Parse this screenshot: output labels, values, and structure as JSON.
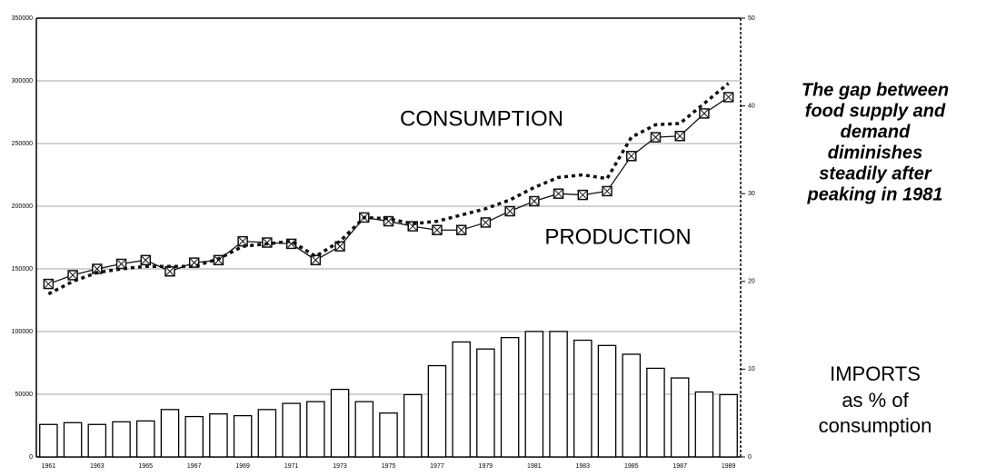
{
  "chart_data": {
    "type": "combo",
    "categories": [
      "1961",
      null,
      "1963",
      null,
      "1965",
      null,
      "1967",
      null,
      "1969",
      null,
      "1971",
      null,
      "1973",
      null,
      "1975",
      null,
      "1977",
      null,
      "1979",
      null,
      "1981",
      null,
      "1983",
      null,
      "1985",
      null,
      "1987",
      null,
      "1989"
    ],
    "ylim": [
      0,
      350000
    ],
    "yticks": [
      0,
      50000,
      100000,
      150000,
      200000,
      250000,
      300000,
      350000
    ],
    "y2lim": [
      0,
      50
    ],
    "y2ticks": [
      0,
      10,
      20,
      30,
      40,
      50
    ],
    "grid": true,
    "series": [
      {
        "name": "PRODUCTION",
        "type": "line",
        "style": "solid-markers",
        "color": "#111111",
        "values": [
          138000,
          145000,
          150000,
          154000,
          157000,
          148000,
          155000,
          157000,
          172000,
          171000,
          170000,
          157000,
          168000,
          191000,
          188000,
          184000,
          181000,
          181000,
          187000,
          196000,
          204000,
          210000,
          209000,
          212000,
          240000,
          255000,
          256000,
          274000,
          287000
        ]
      },
      {
        "name": "CONSUMPTION",
        "type": "line",
        "style": "dotted",
        "color": "#111111",
        "values": [
          130000,
          140000,
          147000,
          150000,
          152000,
          152000,
          152000,
          158000,
          168000,
          170000,
          172000,
          160000,
          172000,
          191000,
          190000,
          186000,
          188000,
          193000,
          198000,
          205000,
          215000,
          223000,
          225000,
          222000,
          255000,
          265000,
          266000,
          282000,
          298000
        ]
      },
      {
        "name": "IMPORTS",
        "type": "bar",
        "axis": "y2",
        "color": "#ffffff",
        "values": [
          3.7,
          3.9,
          3.7,
          4.0,
          4.1,
          5.4,
          4.6,
          4.9,
          4.7,
          5.4,
          6.1,
          6.3,
          7.7,
          6.3,
          5.0,
          7.1,
          10.4,
          13.1,
          12.3,
          13.6,
          14.3,
          14.3,
          13.3,
          12.7,
          11.7,
          10.1,
          9.0,
          7.4,
          7.1
        ]
      }
    ],
    "notes": [
      [
        "The gap between",
        "food supply and",
        "demand",
        "diminishes",
        "steadily after",
        "peaking in 1981"
      ],
      [
        "as % of",
        "consumption"
      ]
    ]
  }
}
